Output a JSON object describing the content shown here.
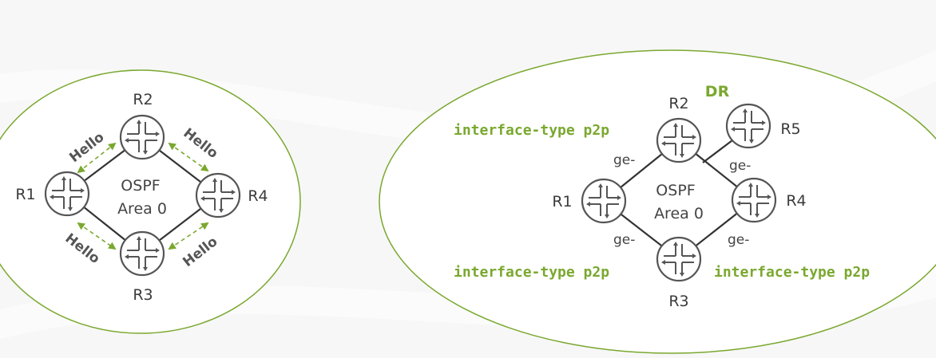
{
  "colors": {
    "accent": "#7aa82f",
    "router": "#555555",
    "link": "#333333"
  },
  "left_diagram": {
    "routers": [
      "R1",
      "R2",
      "R3",
      "R4"
    ],
    "area_name": "OSPF",
    "area_id": "Area 0",
    "hello_label": "Hello"
  },
  "right_diagram": {
    "routers": [
      "R1",
      "R2",
      "R3",
      "R4",
      "R5"
    ],
    "area_name": "OSPF",
    "area_id": "Area 0",
    "dr_label": "DR",
    "port_label": "ge-",
    "interface_command": "interface-type p2p"
  },
  "icons": {
    "router": "router-icon"
  }
}
